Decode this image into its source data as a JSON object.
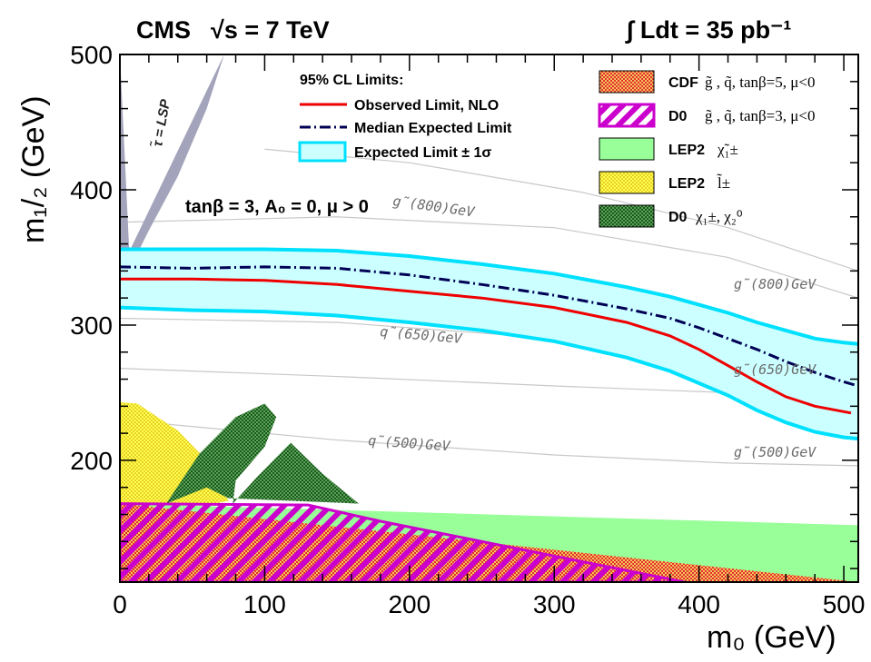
{
  "header": {
    "experiment": "CMS",
    "energy": "√s = 7 TeV",
    "luminosity": "∫ Ldt = 35 pb⁻¹"
  },
  "parameters": "tanβ = 3, A₀ = 0, μ > 0",
  "lsp_label": "τ̃ = LSP",
  "legend_left": {
    "title": "95% CL  Limits:",
    "observed": "Observed Limit, NLO",
    "expected": "Median Expected Limit",
    "band": "Expected Limit ± 1σ"
  },
  "legend_right": [
    {
      "name": "CDF",
      "desc": "g̃ , q̃, tanβ=5, μ<0"
    },
    {
      "name": "D0",
      "desc": "g̃ , q̃, tanβ=3, μ<0"
    },
    {
      "name": "LEP2",
      "desc": "χ̃₁±"
    },
    {
      "name": "LEP2",
      "desc": "l̃±"
    },
    {
      "name": "D0",
      "desc": "χ₁±, χ₂⁰"
    }
  ],
  "iso_labels": {
    "gluino_800": "g̃(800)GeV",
    "gluino_800_right": "g̃(800)GeV",
    "squark_650": "q̃(650)GeV",
    "gluino_650": "g̃(650)GeV",
    "squark_500": "q̃(500)GeV",
    "gluino_500": "g̃(500)GeV"
  },
  "colors": {
    "observed": "#ee0000",
    "expected": "#000055",
    "band_fill": "#ccffff",
    "band_edge": "#00e0ff",
    "cdf": "#ee3333",
    "d0_squark": "#cc00cc",
    "lep2_chargino": "#99ff99",
    "lep2_slepton": "#ffff44",
    "d0_chargino": "#226622",
    "lsp_region": "#a3a3bb"
  },
  "chart_data": {
    "type": "line",
    "title": "",
    "xlabel": "m₀ (GeV)",
    "ylabel": "m₁/₂ (GeV)",
    "xlim": [
      0,
      510
    ],
    "ylim": [
      110,
      500
    ],
    "xticks": [
      0,
      100,
      200,
      300,
      400,
      500
    ],
    "yticks": [
      200,
      300,
      400,
      500
    ],
    "series": [
      {
        "name": "Observed Limit, NLO",
        "x": [
          0,
          50,
          100,
          150,
          200,
          250,
          300,
          350,
          380,
          400,
          420,
          440,
          460,
          480,
          500,
          505
        ],
        "y": [
          334,
          334,
          333,
          330,
          325,
          320,
          313,
          302,
          292,
          282,
          270,
          258,
          247,
          240,
          236,
          235
        ]
      },
      {
        "name": "Median Expected Limit",
        "x": [
          0,
          50,
          100,
          150,
          200,
          250,
          300,
          350,
          380,
          400,
          420,
          440,
          460,
          480,
          500,
          510
        ],
        "y": [
          343,
          342,
          343,
          342,
          337,
          330,
          322,
          312,
          305,
          298,
          290,
          282,
          273,
          265,
          258,
          255
        ]
      },
      {
        "name": "Expected Limit ± 1σ upper",
        "x": [
          0,
          50,
          100,
          150,
          200,
          250,
          300,
          350,
          380,
          400,
          420,
          440,
          460,
          480,
          500,
          510
        ],
        "y": [
          356,
          356,
          356,
          355,
          351,
          345,
          338,
          328,
          321,
          315,
          309,
          302,
          296,
          290,
          287,
          286
        ]
      },
      {
        "name": "Expected Limit ± 1σ lower",
        "x": [
          0,
          50,
          100,
          150,
          200,
          250,
          300,
          350,
          380,
          400,
          420,
          440,
          460,
          480,
          500,
          510
        ],
        "y": [
          313,
          311,
          310,
          307,
          302,
          296,
          288,
          276,
          266,
          257,
          248,
          237,
          228,
          221,
          217,
          216
        ]
      }
    ],
    "regions": [
      {
        "name": "stau LSP",
        "x": [
          0,
          0,
          72,
          60,
          40,
          20,
          7
        ],
        "y": [
          500,
          340,
          500,
          460,
          410,
          370,
          342
        ]
      },
      {
        "name": "LEP2 chargino",
        "x": [
          0,
          510,
          510,
          0
        ],
        "y": [
          110,
          110,
          152,
          168
        ]
      },
      {
        "name": "LEP2 slepton",
        "x": [
          0,
          0,
          12,
          40,
          60,
          70,
          75,
          65,
          0
        ],
        "y": [
          168,
          243,
          242,
          222,
          200,
          180,
          170,
          168,
          168
        ]
      },
      {
        "name": "D0 chi",
        "x": [
          32,
          55,
          80,
          100,
          108,
          100,
          80,
          78,
          95,
          118,
          140,
          165,
          75,
          60
        ],
        "y": [
          168,
          205,
          232,
          242,
          232,
          210,
          185,
          168,
          188,
          213,
          190,
          168,
          172,
          180
        ]
      },
      {
        "name": "CDF",
        "x": [
          0,
          510,
          510,
          0
        ],
        "y": [
          110,
          110,
          110,
          168
        ]
      },
      {
        "name": "D0 squark",
        "x": [
          0,
          130,
          180,
          250,
          320,
          390,
          0
        ],
        "y": [
          168,
          167,
          155,
          140,
          125,
          110,
          110
        ]
      }
    ],
    "grid": false,
    "legend": "top"
  }
}
